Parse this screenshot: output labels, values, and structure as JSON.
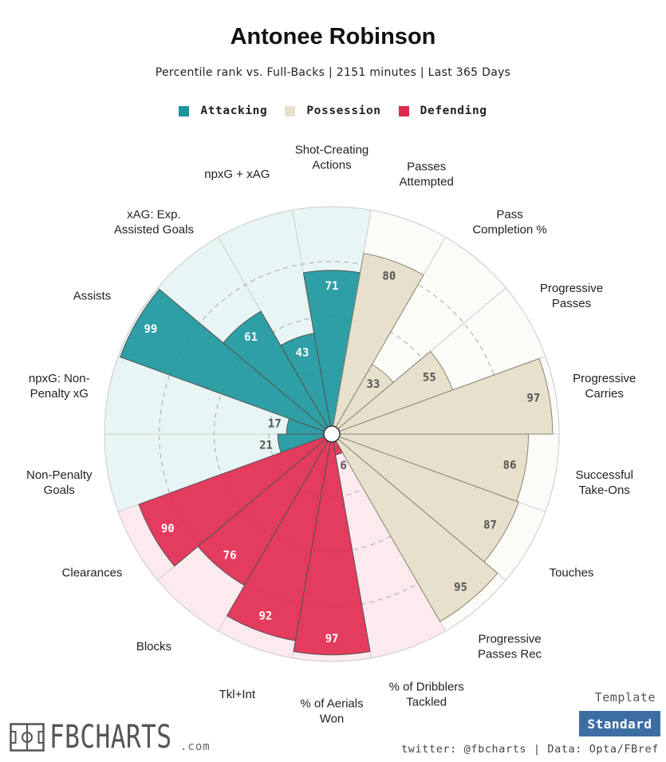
{
  "header": {
    "title": "Antonee Robinson",
    "subtitle": "Percentile rank vs. Full-Backs | 2151 minutes | Last 365 Days"
  },
  "legend": [
    {
      "label": "Attacking",
      "color": "#1a969b"
    },
    {
      "label": "Possession",
      "color": "#e6e0cc"
    },
    {
      "label": "Defending",
      "color": "#e0294e"
    }
  ],
  "chart_data": {
    "type": "polar-bar",
    "title": "Antonee Robinson",
    "subtitle": "Percentile rank vs. Full-Backs | 2151 minutes | Last 365 Days",
    "range": [
      0,
      100
    ],
    "categories": [
      {
        "label": [
          "Shot-Creating",
          "Actions"
        ],
        "value": 71,
        "group": "Attacking"
      },
      {
        "label": [
          "Passes",
          "Attempted"
        ],
        "value": 80,
        "group": "Possession"
      },
      {
        "label": [
          "Pass",
          "Completion %"
        ],
        "value": 33,
        "group": "Possession"
      },
      {
        "label": [
          "Progressive",
          "Passes"
        ],
        "value": 55,
        "group": "Possession"
      },
      {
        "label": [
          "Progressive",
          "Carries"
        ],
        "value": 97,
        "group": "Possession"
      },
      {
        "label": [
          "Successful",
          "Take-Ons"
        ],
        "value": 86,
        "group": "Possession"
      },
      {
        "label": [
          "Touches"
        ],
        "value": 87,
        "group": "Possession"
      },
      {
        "label": [
          "Progressive",
          "Passes Rec"
        ],
        "value": 95,
        "group": "Possession"
      },
      {
        "label": [
          "% of Dribblers",
          "Tackled"
        ],
        "value": 6,
        "group": "Defending"
      },
      {
        "label": [
          "% of Aerials",
          "Won"
        ],
        "value": 97,
        "group": "Defending"
      },
      {
        "label": [
          "Tkl+Int"
        ],
        "value": 92,
        "group": "Defending"
      },
      {
        "label": [
          "Blocks"
        ],
        "value": 76,
        "group": "Defending"
      },
      {
        "label": [
          "Clearances"
        ],
        "value": 90,
        "group": "Defending"
      },
      {
        "label": [
          "Non-Penalty",
          "Goals"
        ],
        "value": 21,
        "group": "Attacking"
      },
      {
        "label": [
          "npxG: Non-",
          "Penalty xG"
        ],
        "value": 17,
        "group": "Attacking"
      },
      {
        "label": [
          "Assists"
        ],
        "value": 99,
        "group": "Attacking"
      },
      {
        "label": [
          "xAG: Exp.",
          "Assisted Goals"
        ],
        "value": 61,
        "group": "Attacking"
      },
      {
        "label": [
          "npxG + xAG"
        ],
        "value": 43,
        "group": "Attacking"
      }
    ],
    "colors": {
      "Attacking": {
        "fill": "#1a969b",
        "bg": "#e8f5f5"
      },
      "Possession": {
        "fill": "#e6e0cc",
        "bg": "#fbfbf8"
      },
      "Defending": {
        "fill": "#e0294e",
        "bg": "#fdeaef"
      }
    }
  },
  "footer": {
    "template_label": "Template",
    "template_button": "Standard",
    "credits": "twitter: @fbcharts | Data: Opta/FBref",
    "logo_text": "FBCHARTS",
    "logo_suffix": ".com"
  }
}
